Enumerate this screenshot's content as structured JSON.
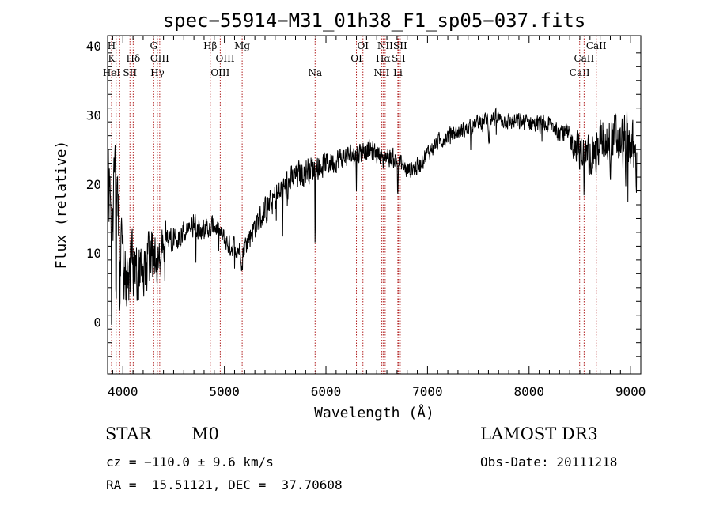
{
  "chart_data": {
    "type": "line",
    "title": "spec−55914−M31_01h38_F1_sp05−037.fits",
    "xlabel": "Wavelength (Å)",
    "ylabel": "Flux (relative)",
    "xlim": [
      3850,
      9100
    ],
    "ylim": [
      -7.5,
      41.5
    ],
    "x_ticks": [
      4000,
      5000,
      6000,
      7000,
      8000,
      9000
    ],
    "y_ticks": [
      0,
      10,
      20,
      30,
      40
    ],
    "x_tick_labels": [
      "4000",
      "5000",
      "6000",
      "7000",
      "8000",
      "9000"
    ],
    "y_tick_labels": [
      "0",
      "10",
      "20",
      "30",
      "40"
    ],
    "grid": false,
    "line_color": "#000000",
    "marker_color": "#b22222",
    "spectrum_anchors": [
      [
        3870,
        20
      ],
      [
        3890,
        12
      ],
      [
        3920,
        22
      ],
      [
        3950,
        14
      ],
      [
        3980,
        12
      ],
      [
        4000,
        9
      ],
      [
        4050,
        6
      ],
      [
        4100,
        9
      ],
      [
        4150,
        6
      ],
      [
        4200,
        9
      ],
      [
        4250,
        8
      ],
      [
        4300,
        9
      ],
      [
        4350,
        10
      ],
      [
        4400,
        11
      ],
      [
        4500,
        12
      ],
      [
        4600,
        13
      ],
      [
        4700,
        14
      ],
      [
        4800,
        13.5
      ],
      [
        4900,
        14
      ],
      [
        5000,
        12
      ],
      [
        5050,
        11
      ],
      [
        5100,
        11
      ],
      [
        5150,
        10.5
      ],
      [
        5200,
        11
      ],
      [
        5300,
        14
      ],
      [
        5400,
        16
      ],
      [
        5500,
        18
      ],
      [
        5600,
        19.5
      ],
      [
        5700,
        21
      ],
      [
        5800,
        22
      ],
      [
        5900,
        22.5
      ],
      [
        6000,
        23
      ],
      [
        6100,
        23.5
      ],
      [
        6200,
        24
      ],
      [
        6300,
        24.5
      ],
      [
        6400,
        25
      ],
      [
        6500,
        24.5
      ],
      [
        6600,
        24
      ],
      [
        6700,
        23.5
      ],
      [
        6800,
        22
      ],
      [
        6900,
        22.5
      ],
      [
        7000,
        24.5
      ],
      [
        7100,
        26
      ],
      [
        7200,
        27
      ],
      [
        7300,
        27.5
      ],
      [
        7400,
        28
      ],
      [
        7500,
        29
      ],
      [
        7600,
        29.5
      ],
      [
        7700,
        29.5
      ],
      [
        7800,
        29
      ],
      [
        7900,
        29
      ],
      [
        8000,
        29
      ],
      [
        8100,
        28.5
      ],
      [
        8200,
        28.5
      ],
      [
        8300,
        28
      ],
      [
        8400,
        26.5
      ],
      [
        8500,
        25
      ],
      [
        8600,
        24
      ],
      [
        8700,
        26
      ],
      [
        8800,
        27
      ],
      [
        8900,
        26
      ],
      [
        9000,
        26
      ],
      [
        9050,
        23
      ]
    ],
    "spectrum_noise": [
      [
        3850,
        8
      ],
      [
        4300,
        6
      ],
      [
        4500,
        2.5
      ],
      [
        5000,
        2
      ],
      [
        5500,
        3
      ],
      [
        6500,
        2
      ],
      [
        7500,
        1.5
      ],
      [
        8300,
        2
      ],
      [
        8600,
        4
      ],
      [
        9100,
        6
      ]
    ],
    "spectrum_dips": [
      [
        3934,
        10,
        4
      ],
      [
        3969,
        8,
        4
      ],
      [
        4102,
        4,
        5
      ],
      [
        4340,
        3,
        4
      ],
      [
        4861,
        2,
        5
      ],
      [
        5175,
        3,
        6
      ],
      [
        5893,
        11,
        3
      ],
      [
        6300,
        5,
        3
      ],
      [
        6563,
        3,
        4
      ],
      [
        6708,
        5,
        3
      ],
      [
        7605,
        3,
        8
      ],
      [
        8498,
        3,
        4
      ],
      [
        8542,
        5,
        4
      ],
      [
        8662,
        4,
        4
      ],
      [
        8800,
        3,
        5
      ],
      [
        8950,
        5,
        3
      ]
    ],
    "spectral_lines": [
      {
        "x": 3889,
        "labels": [
          {
            "text": "H",
            "row": 1
          },
          {
            "text": "K",
            "row": 2
          },
          {
            "text": "HeI",
            "row": 3
          }
        ]
      },
      {
        "x": 3934
      },
      {
        "x": 3969
      },
      {
        "x": 4070,
        "labels": [
          {
            "text": "SII",
            "row": 3
          }
        ]
      },
      {
        "x": 4102,
        "labels": [
          {
            "text": "Hδ",
            "row": 2
          }
        ]
      },
      {
        "x": 4304,
        "labels": [
          {
            "text": "G",
            "row": 1
          }
        ]
      },
      {
        "x": 4340,
        "labels": [
          {
            "text": "Hγ",
            "row": 3
          }
        ]
      },
      {
        "x": 4363,
        "labels": [
          {
            "text": "OIII",
            "row": 2
          }
        ]
      },
      {
        "x": 4861,
        "labels": [
          {
            "text": "Hβ",
            "row": 1
          }
        ]
      },
      {
        "x": 4959,
        "labels": [
          {
            "text": "OIII",
            "row": 3
          }
        ]
      },
      {
        "x": 5007,
        "labels": [
          {
            "text": "OIII",
            "row": 2
          }
        ]
      },
      {
        "x": 5175,
        "labels": [
          {
            "text": "Mg",
            "row": 1
          }
        ]
      },
      {
        "x": 5893,
        "labels": [
          {
            "text": "Na",
            "row": 3
          }
        ]
      },
      {
        "x": 6300,
        "labels": [
          {
            "text": "OI",
            "row": 2
          }
        ]
      },
      {
        "x": 6364,
        "labels": [
          {
            "text": "OI",
            "row": 1
          }
        ]
      },
      {
        "x": 6548,
        "labels": [
          {
            "text": "NII",
            "row": 3
          }
        ]
      },
      {
        "x": 6563,
        "labels": [
          {
            "text": "Hα",
            "row": 2
          }
        ]
      },
      {
        "x": 6583,
        "labels": [
          {
            "text": "NII",
            "row": 1
          }
        ]
      },
      {
        "x": 6708,
        "labels": [
          {
            "text": "Li",
            "row": 3
          }
        ]
      },
      {
        "x": 6716,
        "labels": [
          {
            "text": "SII",
            "row": 2
          }
        ]
      },
      {
        "x": 6731,
        "labels": [
          {
            "text": "SII",
            "row": 1
          }
        ]
      },
      {
        "x": 8498,
        "labels": [
          {
            "text": "CaII",
            "row": 3
          }
        ]
      },
      {
        "x": 8542,
        "labels": [
          {
            "text": "CaII",
            "row": 2
          }
        ]
      },
      {
        "x": 8662,
        "labels": [
          {
            "text": "CaII",
            "row": 1
          }
        ]
      }
    ]
  },
  "info": {
    "object_class": "STAR",
    "subclass": "M0",
    "survey": "LAMOST DR3",
    "cz_line": "cz = −110.0 ± 9.6 km/s",
    "obs_date": "Obs-Date: 20111218",
    "coords": "RA =  15.51121, DEC =  37.70608"
  }
}
